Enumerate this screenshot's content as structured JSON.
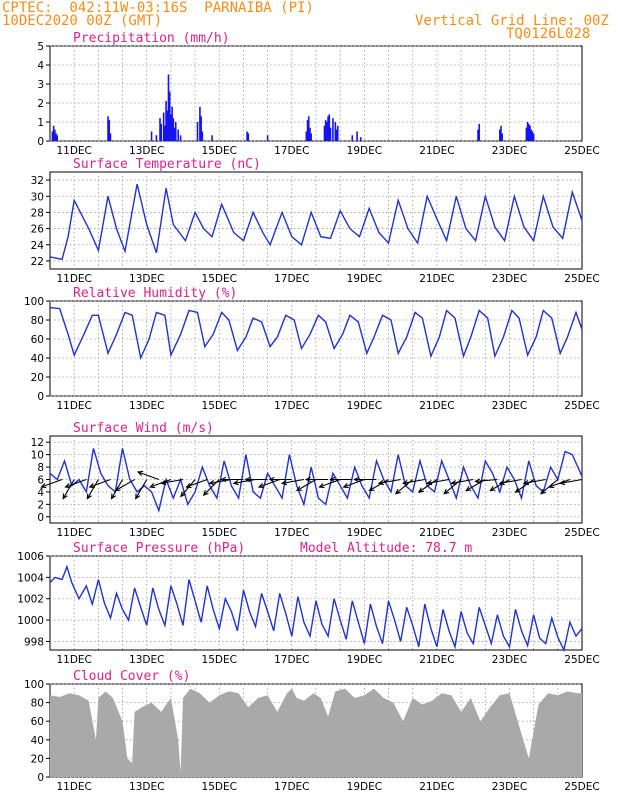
{
  "header": {
    "line1": "CPTEC:  042:11W-03:16S  PARNAIBA (PI)",
    "line2": "10DEC2020 00Z (GMT)",
    "right1": "Vertical Grid Line: 00Z",
    "right2": "TQ0126L028"
  },
  "chart_data": [
    {
      "type": "bar",
      "title": "Precipitation (mm/h)",
      "xlabel": "",
      "ylabel": "",
      "ylim": [
        0,
        5
      ],
      "yticks": [
        "0",
        "1",
        "2",
        "3",
        "4",
        "5"
      ],
      "xticks": [
        "11DEC",
        "13DEC",
        "15DEC",
        "17DEC",
        "19DEC",
        "21DEC",
        "23DEC",
        "25DEC"
      ],
      "color": "#1515f0",
      "bars": [
        {
          "t": 0.1,
          "v": 0.5
        },
        {
          "t": 0.15,
          "v": 0.8
        },
        {
          "t": 0.2,
          "v": 0.6
        },
        {
          "t": 0.25,
          "v": 0.4
        },
        {
          "t": 0.3,
          "v": 0.3
        },
        {
          "t": 2.4,
          "v": 1.3
        },
        {
          "t": 2.45,
          "v": 1.1
        },
        {
          "t": 2.5,
          "v": 0.4
        },
        {
          "t": 4.2,
          "v": 0.5
        },
        {
          "t": 4.4,
          "v": 0.3
        },
        {
          "t": 4.55,
          "v": 1.2
        },
        {
          "t": 4.6,
          "v": 0.9
        },
        {
          "t": 4.7,
          "v": 1.5
        },
        {
          "t": 4.75,
          "v": 0.8
        },
        {
          "t": 4.8,
          "v": 2.1
        },
        {
          "t": 4.85,
          "v": 1.6
        },
        {
          "t": 4.9,
          "v": 3.5
        },
        {
          "t": 4.95,
          "v": 2.6
        },
        {
          "t": 5.0,
          "v": 1.4
        },
        {
          "t": 5.05,
          "v": 1.8
        },
        {
          "t": 5.1,
          "v": 1.2
        },
        {
          "t": 5.15,
          "v": 0.7
        },
        {
          "t": 5.2,
          "v": 1.0
        },
        {
          "t": 5.3,
          "v": 0.6
        },
        {
          "t": 5.4,
          "v": 0.3
        },
        {
          "t": 6.1,
          "v": 1.0
        },
        {
          "t": 6.2,
          "v": 1.8
        },
        {
          "t": 6.25,
          "v": 1.3
        },
        {
          "t": 6.3,
          "v": 0.5
        },
        {
          "t": 6.7,
          "v": 0.3
        },
        {
          "t": 8.15,
          "v": 0.5
        },
        {
          "t": 8.2,
          "v": 0.4
        },
        {
          "t": 9.0,
          "v": 0.3
        },
        {
          "t": 10.6,
          "v": 0.5
        },
        {
          "t": 10.65,
          "v": 1.1
        },
        {
          "t": 10.7,
          "v": 1.3
        },
        {
          "t": 10.75,
          "v": 0.7
        },
        {
          "t": 10.8,
          "v": 0.4
        },
        {
          "t": 11.35,
          "v": 0.8
        },
        {
          "t": 11.4,
          "v": 1.1
        },
        {
          "t": 11.45,
          "v": 1.0
        },
        {
          "t": 11.5,
          "v": 1.3
        },
        {
          "t": 11.55,
          "v": 1.4
        },
        {
          "t": 11.6,
          "v": 0.7
        },
        {
          "t": 11.7,
          "v": 1.2
        },
        {
          "t": 11.8,
          "v": 1.0
        },
        {
          "t": 11.85,
          "v": 0.6
        },
        {
          "t": 11.9,
          "v": 0.8
        },
        {
          "t": 12.5,
          "v": 0.3
        },
        {
          "t": 12.7,
          "v": 0.5
        },
        {
          "t": 12.85,
          "v": 0.2
        },
        {
          "t": 17.7,
          "v": 0.6
        },
        {
          "t": 17.75,
          "v": 0.9
        },
        {
          "t": 18.6,
          "v": 0.6
        },
        {
          "t": 18.65,
          "v": 0.8
        },
        {
          "t": 18.7,
          "v": 0.4
        },
        {
          "t": 19.7,
          "v": 0.7
        },
        {
          "t": 19.75,
          "v": 1.0
        },
        {
          "t": 19.8,
          "v": 0.9
        },
        {
          "t": 19.85,
          "v": 0.8
        },
        {
          "t": 19.9,
          "v": 0.6
        },
        {
          "t": 19.95,
          "v": 0.5
        },
        {
          "t": 20.0,
          "v": 0.4
        }
      ]
    },
    {
      "type": "line",
      "title": "Surface Temperature (nC)",
      "ylim": [
        21,
        33
      ],
      "yticks": [
        "22",
        "24",
        "26",
        "28",
        "30",
        "32"
      ],
      "xticks": [
        "11DEC",
        "13DEC",
        "15DEC",
        "17DEC",
        "19DEC",
        "21DEC",
        "23DEC",
        "25DEC"
      ],
      "color": "#2233cc",
      "x": [
        0,
        0.5,
        0.75,
        1.0,
        1.6,
        2.0,
        2.4,
        2.75,
        3.1,
        3.6,
        4.0,
        4.4,
        4.8,
        5.1,
        5.6,
        6.0,
        6.35,
        6.7,
        7.1,
        7.6,
        8.0,
        8.4,
        8.8,
        9.1,
        9.6,
        10.0,
        10.4,
        10.8,
        11.2,
        11.6,
        12.0,
        12.4,
        12.8,
        13.2,
        13.6,
        14.0,
        14.4,
        14.8,
        15.2,
        15.6,
        16.0,
        16.4,
        16.8,
        17.2,
        17.6,
        18.0,
        18.4,
        18.8,
        19.2,
        19.6,
        20.0,
        20.4,
        20.8,
        21.2,
        21.6,
        22.0
      ],
      "y": [
        22.5,
        22.2,
        25,
        29.5,
        26,
        23.3,
        30,
        26,
        23.2,
        31.5,
        26.5,
        23,
        31,
        26.5,
        24.5,
        28,
        26,
        25,
        29,
        25.5,
        24.5,
        28,
        25.5,
        24,
        28,
        25,
        24,
        28,
        25,
        24.8,
        28.2,
        26,
        25,
        28.5,
        25.5,
        24.2,
        29.5,
        26,
        24.2,
        30,
        27.2,
        24.5,
        30,
        26,
        24.5,
        30,
        26.2,
        24.5,
        30,
        26.2,
        24.5,
        30,
        26.2,
        24.8,
        30.5,
        27
      ]
    },
    {
      "type": "line",
      "title": "Relative Humidity (%)",
      "ylim": [
        0,
        100
      ],
      "yticks": [
        "0",
        "20",
        "40",
        "60",
        "80",
        "100"
      ],
      "xticks": [
        "11DEC",
        "13DEC",
        "15DEC",
        "17DEC",
        "19DEC",
        "21DEC",
        "23DEC",
        "25DEC"
      ],
      "color": "#2233cc",
      "x": [
        0,
        0.4,
        0.75,
        1.0,
        1.4,
        1.75,
        2.0,
        2.4,
        2.75,
        3.1,
        3.4,
        3.75,
        4.1,
        4.4,
        4.75,
        5.0,
        5.4,
        5.75,
        6.1,
        6.4,
        6.75,
        7.1,
        7.4,
        7.75,
        8.1,
        8.4,
        8.75,
        9.1,
        9.4,
        9.75,
        10.1,
        10.4,
        10.75,
        11.1,
        11.4,
        11.75,
        12.1,
        12.4,
        12.75,
        13.1,
        13.4,
        13.75,
        14.1,
        14.4,
        14.75,
        15.1,
        15.4,
        15.75,
        16.1,
        16.4,
        16.75,
        17.1,
        17.4,
        17.75,
        18.1,
        18.4,
        18.75,
        19.1,
        19.4,
        19.75,
        20.1,
        20.4,
        20.75,
        21.1,
        21.4,
        21.75,
        22.0
      ],
      "y": [
        93,
        92,
        65,
        43,
        65,
        85,
        85,
        45,
        65,
        88,
        85,
        40,
        60,
        88,
        85,
        43,
        65,
        90,
        88,
        52,
        65,
        88,
        80,
        48,
        62,
        82,
        78,
        52,
        62,
        85,
        80,
        50,
        65,
        85,
        78,
        50,
        65,
        85,
        78,
        45,
        62,
        85,
        80,
        45,
        62,
        88,
        82,
        42,
        62,
        90,
        82,
        42,
        62,
        90,
        82,
        42,
        62,
        90,
        82,
        43,
        62,
        90,
        82,
        45,
        62,
        88,
        70
      ]
    },
    {
      "type": "line",
      "title": "Surface Wind (m/s)",
      "ylim": [
        -1,
        13
      ],
      "yticks": [
        "0",
        "2",
        "4",
        "6",
        "8",
        "10",
        "12"
      ],
      "xticks": [
        "11DEC",
        "13DEC",
        "15DEC",
        "17DEC",
        "19DEC",
        "21DEC",
        "23DEC",
        "25DEC"
      ],
      "color": "#2233cc",
      "x": [
        0,
        0.3,
        0.6,
        0.9,
        1.2,
        1.5,
        1.8,
        2.1,
        2.4,
        2.7,
        3.0,
        3.3,
        3.6,
        3.9,
        4.2,
        4.5,
        4.8,
        5.1,
        5.4,
        5.7,
        6.0,
        6.3,
        6.6,
        6.9,
        7.2,
        7.5,
        7.8,
        8.1,
        8.4,
        8.7,
        9.0,
        9.3,
        9.6,
        9.9,
        10.2,
        10.5,
        10.8,
        11.1,
        11.4,
        11.7,
        12.0,
        12.3,
        12.6,
        12.9,
        13.2,
        13.5,
        13.8,
        14.1,
        14.4,
        14.7,
        15.0,
        15.3,
        15.6,
        15.9,
        16.2,
        16.5,
        16.8,
        17.1,
        17.4,
        17.7,
        18.0,
        18.3,
        18.6,
        18.9,
        19.2,
        19.5,
        19.8,
        20.1,
        20.4,
        20.7,
        21.0,
        21.3,
        21.6,
        22.0
      ],
      "y": [
        7,
        6,
        9,
        5,
        6,
        4,
        11,
        7,
        5,
        4,
        11,
        6,
        4,
        5,
        4,
        1,
        6,
        3,
        6,
        2,
        4,
        8,
        5,
        3,
        9,
        5,
        3,
        10,
        4,
        3,
        7,
        5,
        3,
        10,
        5,
        2,
        8,
        3,
        2,
        7,
        5,
        3,
        8,
        5,
        3,
        9,
        6,
        4,
        10,
        5,
        4,
        9,
        5,
        4,
        9,
        6,
        3,
        8,
        5,
        3,
        9,
        7,
        4,
        8,
        6,
        3,
        9,
        5,
        4,
        8,
        6,
        10.5,
        10,
        6.5
      ],
      "wind_arrows": [
        {
          "t": 0.5,
          "dir": 200
        },
        {
          "t": 1.0,
          "dir": 240
        },
        {
          "t": 1.5,
          "dir": 200
        },
        {
          "t": 2.0,
          "dir": 240
        },
        {
          "t": 2.5,
          "dir": 200
        },
        {
          "t": 3.0,
          "dir": 240
        },
        {
          "t": 3.5,
          "dir": 210
        },
        {
          "t": 4.0,
          "dir": 240
        },
        {
          "t": 4.5,
          "dir": 160
        },
        {
          "t": 5.0,
          "dir": 200
        },
        {
          "t": 5.5,
          "dir": 190
        },
        {
          "t": 6.0,
          "dir": 230
        },
        {
          "t": 6.5,
          "dir": 200
        },
        {
          "t": 7.0,
          "dir": 225
        },
        {
          "t": 7.5,
          "dir": 190
        },
        {
          "t": 8.0,
          "dir": 180
        },
        {
          "t": 8.5,
          "dir": 190
        },
        {
          "t": 9.0,
          "dir": 180
        },
        {
          "t": 9.5,
          "dir": 200
        },
        {
          "t": 10.0,
          "dir": 180
        },
        {
          "t": 10.5,
          "dir": 190
        },
        {
          "t": 11.0,
          "dir": 210
        },
        {
          "t": 11.5,
          "dir": 180
        },
        {
          "t": 12.0,
          "dir": 200
        },
        {
          "t": 12.5,
          "dir": 180
        },
        {
          "t": 13.0,
          "dir": 200
        },
        {
          "t": 13.5,
          "dir": 180
        },
        {
          "t": 14.0,
          "dir": 210
        },
        {
          "t": 14.5,
          "dir": 190
        },
        {
          "t": 15.0,
          "dir": 220
        },
        {
          "t": 15.5,
          "dir": 190
        },
        {
          "t": 16.0,
          "dir": 215
        },
        {
          "t": 16.5,
          "dir": 190
        },
        {
          "t": 17.0,
          "dir": 220
        },
        {
          "t": 17.5,
          "dir": 190
        },
        {
          "t": 18.0,
          "dir": 210
        },
        {
          "t": 18.5,
          "dir": 185
        },
        {
          "t": 19.0,
          "dir": 210
        },
        {
          "t": 19.5,
          "dir": 190
        },
        {
          "t": 20.0,
          "dir": 215
        },
        {
          "t": 20.5,
          "dir": 190
        },
        {
          "t": 21.0,
          "dir": 220
        },
        {
          "t": 21.5,
          "dir": 200
        },
        {
          "t": 22.0,
          "dir": 190
        }
      ]
    },
    {
      "type": "line",
      "title": "Surface Pressure (hPa)",
      "annotation": "Model Altitude: 78.7 m",
      "ylim": [
        997.2,
        1006
      ],
      "yticks": [
        "998",
        "1000",
        "1002",
        "1004",
        "1006"
      ],
      "xticks": [
        "11DEC",
        "13DEC",
        "15DEC",
        "17DEC",
        "19DEC",
        "21DEC",
        "23DEC",
        "25DEC"
      ],
      "color": "#2233cc",
      "x": [
        0,
        0.2,
        0.5,
        0.7,
        0.9,
        1.2,
        1.5,
        1.75,
        2.0,
        2.25,
        2.5,
        2.75,
        3.0,
        3.25,
        3.5,
        3.75,
        4.0,
        4.25,
        4.5,
        4.75,
        5.0,
        5.25,
        5.5,
        5.75,
        6.0,
        6.25,
        6.5,
        6.75,
        7.0,
        7.25,
        7.5,
        7.75,
        8.0,
        8.25,
        8.5,
        8.75,
        9.0,
        9.25,
        9.5,
        9.75,
        10.0,
        10.25,
        10.5,
        10.75,
        11.0,
        11.25,
        11.5,
        11.75,
        12.0,
        12.25,
        12.5,
        12.75,
        13.0,
        13.25,
        13.5,
        13.75,
        14.0,
        14.25,
        14.5,
        14.75,
        15.0,
        15.25,
        15.5,
        15.75,
        16.0,
        16.25,
        16.5,
        16.75,
        17.0,
        17.25,
        17.5,
        17.75,
        18.0,
        18.25,
        18.5,
        18.75,
        19.0,
        19.25,
        19.5,
        19.75,
        20.0,
        20.25,
        20.5,
        20.75,
        21.0,
        21.25,
        21.5,
        21.75,
        22.0
      ],
      "y": [
        1003.5,
        1004,
        1003.8,
        1005,
        1003.5,
        1002,
        1003.2,
        1001.5,
        1003.8,
        1001.6,
        1000.2,
        1002.5,
        1001,
        1000,
        1003,
        1001.2,
        999.5,
        1003,
        1001,
        999.5,
        1003.2,
        1001.5,
        999.5,
        1003.8,
        1001.8,
        999.8,
        1003.2,
        1001,
        999.2,
        1002,
        1000.8,
        999,
        1002.8,
        1000.8,
        999.4,
        1002.5,
        1000.8,
        999,
        1002.5,
        1000.6,
        998.5,
        1002.2,
        999.8,
        998.5,
        1001.8,
        999.6,
        998.5,
        1002,
        1000,
        998.2,
        1001.8,
        999.8,
        997.8,
        1001.5,
        999.4,
        997.8,
        1001.8,
        1000,
        998,
        1001.2,
        999.5,
        997.5,
        1001.5,
        999.2,
        997.5,
        1001,
        999,
        997.5,
        1000.8,
        998.8,
        997.8,
        1001.2,
        999.5,
        997.8,
        1000.5,
        998.5,
        997.5,
        1001,
        999,
        997.6,
        1000.5,
        998.3,
        997.8,
        1000.2,
        998.4,
        997.2,
        999.8,
        998.5,
        999.2
      ]
    },
    {
      "type": "area",
      "title": "Cloud Cover (%)",
      "ylim": [
        0,
        100
      ],
      "yticks": [
        "0",
        "20",
        "40",
        "60",
        "80",
        "100"
      ],
      "xticks": [
        "11DEC",
        "13DEC",
        "15DEC",
        "17DEC",
        "19DEC",
        "21DEC",
        "23DEC",
        "25DEC"
      ],
      "color": "#a9a9a9",
      "x": [
        0,
        0.4,
        0.8,
        1.2,
        1.6,
        1.9,
        2.0,
        2.3,
        2.6,
        3.0,
        3.2,
        3.4,
        3.5,
        3.8,
        4.2,
        4.6,
        5.0,
        5.3,
        5.4,
        5.5,
        5.8,
        6.2,
        6.6,
        7.0,
        7.4,
        7.8,
        8.2,
        8.6,
        9.0,
        9.4,
        9.8,
        10.0,
        10.2,
        10.5,
        10.9,
        11.2,
        11.5,
        11.8,
        12.2,
        12.6,
        13.0,
        13.4,
        13.8,
        14.2,
        14.6,
        15.0,
        15.4,
        15.8,
        16.2,
        16.6,
        17.0,
        17.4,
        17.8,
        18.2,
        18.6,
        19.0,
        19.4,
        19.8,
        20.2,
        20.6,
        21.0,
        21.4,
        21.8,
        22.0
      ],
      "y": [
        88,
        86,
        90,
        88,
        82,
        40,
        85,
        92,
        85,
        60,
        20,
        15,
        70,
        75,
        80,
        70,
        85,
        40,
        5,
        85,
        95,
        90,
        80,
        88,
        92,
        90,
        75,
        85,
        88,
        70,
        90,
        95,
        85,
        82,
        90,
        85,
        65,
        92,
        95,
        85,
        88,
        95,
        85,
        80,
        60,
        85,
        78,
        82,
        90,
        88,
        70,
        85,
        60,
        75,
        88,
        90,
        55,
        20,
        78,
        90,
        88,
        92,
        90,
        90
      ]
    }
  ]
}
